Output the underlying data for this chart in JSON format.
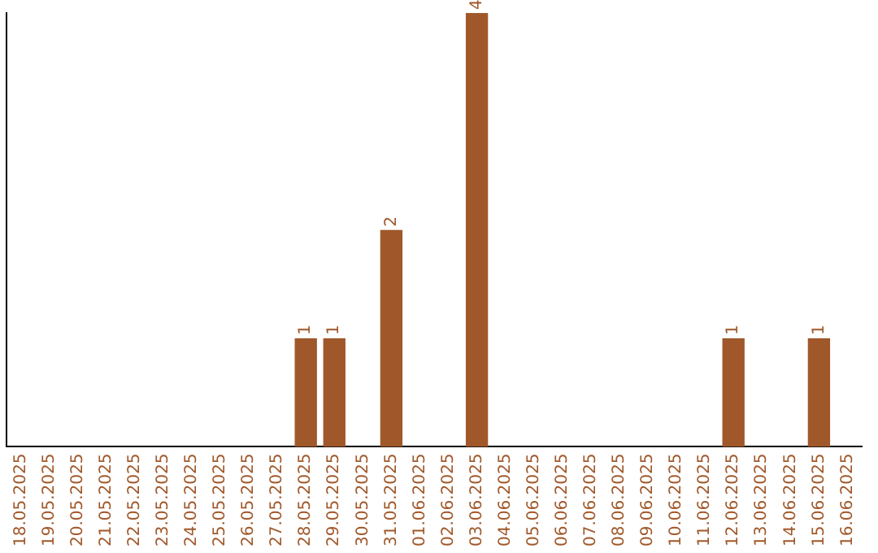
{
  "chart_data": {
    "type": "bar",
    "categories": [
      "18.05.2025",
      "19.05.2025",
      "20.05.2025",
      "21.05.2025",
      "22.05.2025",
      "23.05.2025",
      "24.05.2025",
      "25.05.2025",
      "26.05.2025",
      "27.05.2025",
      "28.05.2025",
      "29.05.2025",
      "30.05.2025",
      "31.05.2025",
      "01.06.2025",
      "02.06.2025",
      "03.06.2025",
      "04.06.2025",
      "05.06.2025",
      "06.06.2025",
      "07.06.2025",
      "08.06.2025",
      "09.06.2025",
      "10.06.2025",
      "11.06.2025",
      "12.06.2025",
      "13.06.2025",
      "14.06.2025",
      "15.06.2025",
      "16.06.2025"
    ],
    "values": [
      0,
      0,
      0,
      0,
      0,
      0,
      0,
      0,
      0,
      0,
      1,
      1,
      0,
      2,
      0,
      0,
      4,
      0,
      0,
      0,
      0,
      0,
      0,
      0,
      0,
      1,
      0,
      0,
      1,
      0
    ],
    "value_labels": [
      null,
      null,
      null,
      null,
      null,
      null,
      null,
      null,
      null,
      null,
      "1",
      "1",
      null,
      "2",
      null,
      null,
      "4",
      null,
      null,
      null,
      null,
      null,
      null,
      null,
      null,
      "1",
      null,
      null,
      "1",
      null
    ],
    "color": "#a0582a",
    "grid": false,
    "legend": false,
    "tick_labels": "x"
  }
}
